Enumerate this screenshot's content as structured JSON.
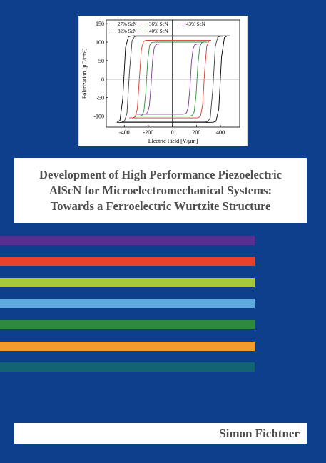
{
  "cover": {
    "title_lines": [
      "Development of High Performance Piezoelectric",
      "AlScN for Microelectromechanical Systems:",
      "Towards a Ferroelectric Wurtzite Structure"
    ],
    "author": "Simon Fichtner",
    "background_color": "#0e3f8c",
    "stripes": [
      {
        "color": "#5b2f91"
      },
      {
        "color": "#e8412c"
      },
      {
        "color": "#a5c83c"
      },
      {
        "color": "#5ea9dd"
      },
      {
        "color": "#2d8a3e"
      },
      {
        "color": "#f39b2f"
      },
      {
        "color": "#116470"
      }
    ]
  },
  "chart_data": {
    "type": "line",
    "title": "",
    "xlabel": "Electric Field [V/µm]",
    "ylabel": "Polarization [µC/cm²]",
    "xlim": [
      -550,
      560
    ],
    "ylim": [
      -130,
      160
    ],
    "x_ticks": [
      -400,
      -200,
      0,
      200,
      400
    ],
    "y_ticks": [
      -100,
      -50,
      0,
      50,
      100,
      150
    ],
    "grid": false,
    "legend": "top-left",
    "series": [
      {
        "name": "27% ScN",
        "color": "#000000",
        "Pmax": 117,
        "Pr": 112,
        "Ec_pos": 400,
        "Ec_neg": -405,
        "Emax": 480,
        "Emin": -460
      },
      {
        "name": "32% ScN",
        "color": "#3d3d3d",
        "Pmax": 116,
        "Pr": 108,
        "Ec_pos": 340,
        "Ec_neg": -360,
        "Emax": 420,
        "Emin": -420
      },
      {
        "name": "36% ScN",
        "color": "#d83a2a",
        "Pmax": 105,
        "Pr": 95,
        "Ec_pos": 265,
        "Ec_neg": -275,
        "Emax": 320,
        "Emin": -360
      },
      {
        "name": "40% ScN",
        "color": "#2d8c3c",
        "Pmax": 100,
        "Pr": 88,
        "Ec_pos": 205,
        "Ec_neg": -215,
        "Emax": 290,
        "Emin": -330
      },
      {
        "name": "43% ScN",
        "color": "#7a3a8c",
        "Pmax": 95,
        "Pr": 80,
        "Ec_pos": 150,
        "Ec_neg": -175,
        "Emax": 240,
        "Emin": -300
      }
    ]
  }
}
